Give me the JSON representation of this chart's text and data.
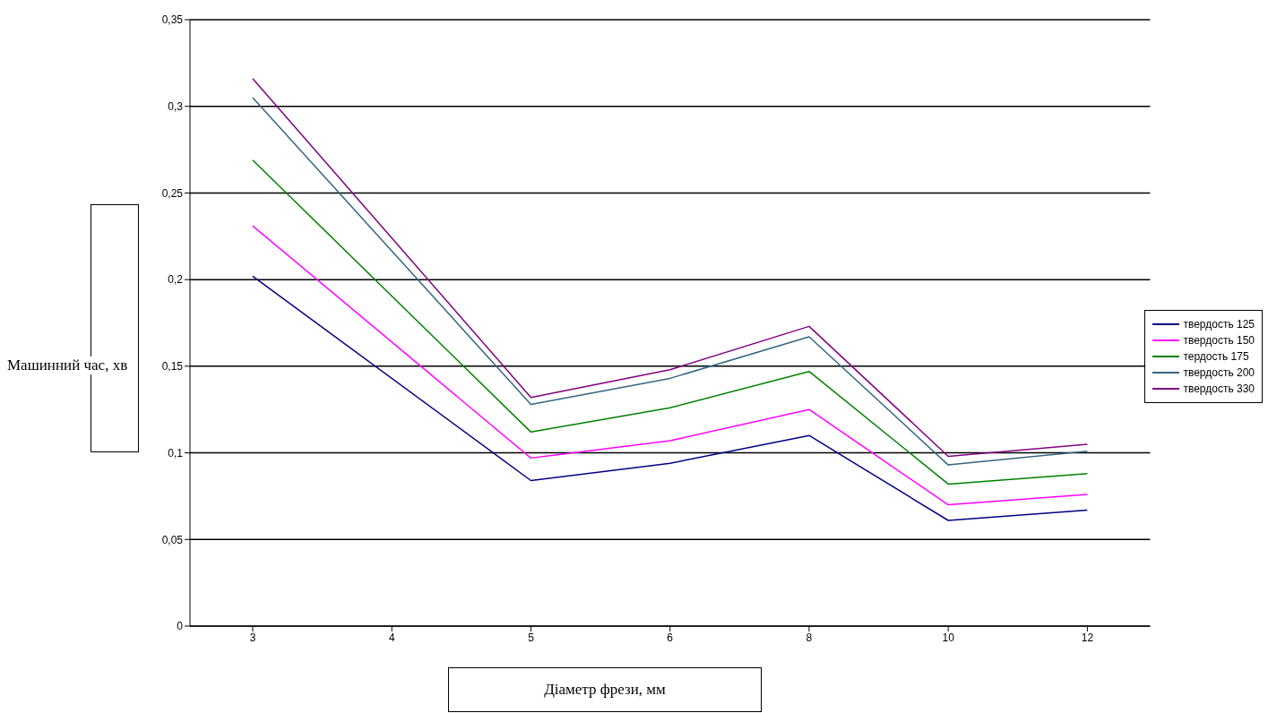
{
  "chart_data": {
    "type": "line",
    "xlabel": "Діаметр фрези, мм",
    "ylabel": "Машинний час, хв",
    "categories": [
      "3",
      "4",
      "5",
      "6",
      "8",
      "10",
      "12"
    ],
    "series": [
      {
        "name": "твердость 125",
        "color": "#000080",
        "values": [
          0.202,
          null,
          0.084,
          0.094,
          0.11,
          0.061,
          0.067
        ]
      },
      {
        "name": "твердость 150",
        "color": "#ff00ff",
        "values": [
          0.231,
          null,
          0.097,
          0.107,
          0.125,
          0.07,
          0.076
        ]
      },
      {
        "name": "тердость 175",
        "color": "#008000",
        "values": [
          0.269,
          null,
          0.112,
          0.126,
          0.147,
          0.082,
          0.088
        ]
      },
      {
        "name": "твердость 200",
        "color": "#336680",
        "values": [
          0.305,
          null,
          0.128,
          0.143,
          0.167,
          0.093,
          0.101
        ]
      },
      {
        "name": "твердость 330",
        "color": "#800080",
        "values": [
          0.316,
          null,
          0.132,
          0.148,
          0.173,
          0.098,
          0.105
        ]
      }
    ],
    "ylim": [
      0,
      0.35
    ],
    "yticks": [
      0,
      {
        "value": 0.05,
        "label": "0,05"
      },
      {
        "value": 0.1,
        "label": "0,1"
      },
      {
        "value": 0.15,
        "label": "0,15"
      },
      {
        "value": 0.2,
        "label": "0,2"
      },
      {
        "value": 0.25,
        "label": "0,25"
      },
      {
        "value": 0.3,
        "label": "0,3"
      },
      {
        "value": 0.35,
        "label": "0,35"
      }
    ],
    "grid": "y",
    "legend": "right",
    "marker": "none"
  }
}
